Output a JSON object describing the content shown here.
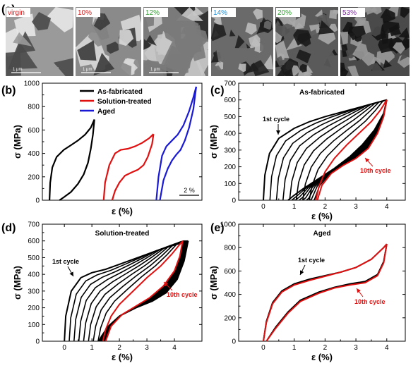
{
  "panel_a": {
    "label": "(a)",
    "micrographs": [
      {
        "strain": "virgin",
        "color": "#d81b1b",
        "scale": "1 μm"
      },
      {
        "strain": "10%",
        "color": "#d81b1b",
        "scale": "1 μm"
      },
      {
        "strain": "12%",
        "color": "#2e9d2e",
        "scale": "1 μm"
      },
      {
        "strain": "14%",
        "color": "#1a8fd8",
        "scale": ""
      },
      {
        "strain": "20%",
        "color": "#2e9d2e",
        "scale": ""
      },
      {
        "strain": "53%",
        "color": "#7a2e9a",
        "scale": ""
      }
    ]
  },
  "colors": {
    "black": "#000000",
    "red": "#e01010",
    "blue": "#1a1ad6"
  },
  "chart_data": [
    {
      "panel": "(b)",
      "type": "line",
      "xlabel": "ε (%)",
      "ylabel": "σ (MPa)",
      "ylim": [
        0,
        1000
      ],
      "yticks": [
        0,
        200,
        400,
        600,
        800,
        1000
      ],
      "xticks_shown": false,
      "scalebar": "2 %",
      "legend": {
        "position": "top-center",
        "entries": [
          "As-fabricated",
          "Solution-treated",
          "Aged"
        ]
      },
      "series": [
        {
          "name": "As-fabricated",
          "color": "#000000",
          "loading": [
            [
              0,
              0
            ],
            [
              0.05,
              150
            ],
            [
              0.2,
              280
            ],
            [
              0.5,
              370
            ],
            [
              1.0,
              430
            ],
            [
              1.5,
              470
            ],
            [
              2.0,
              510
            ],
            [
              2.5,
              560
            ],
            [
              2.9,
              620
            ],
            [
              3.15,
              690
            ]
          ],
          "unloading": [
            [
              3.15,
              690
            ],
            [
              3.05,
              560
            ],
            [
              2.9,
              440
            ],
            [
              2.7,
              320
            ],
            [
              2.4,
              220
            ],
            [
              2.0,
              140
            ],
            [
              1.5,
              70
            ],
            [
              1.0,
              25
            ],
            [
              0.7,
              0
            ]
          ]
        },
        {
          "name": "Solution-treated",
          "color": "#e01010",
          "loading": [
            [
              3.8,
              0
            ],
            [
              3.9,
              150
            ],
            [
              4.2,
              300
            ],
            [
              4.6,
              400
            ],
            [
              5.0,
              430
            ],
            [
              5.5,
              440
            ],
            [
              6.0,
              460
            ],
            [
              6.5,
              490
            ],
            [
              7.0,
              530
            ],
            [
              7.3,
              565
            ]
          ],
          "unloading": [
            [
              7.3,
              565
            ],
            [
              7.2,
              480
            ],
            [
              6.9,
              370
            ],
            [
              6.6,
              300
            ],
            [
              6.2,
              260
            ],
            [
              5.8,
              240
            ],
            [
              5.3,
              210
            ],
            [
              4.9,
              150
            ],
            [
              4.6,
              80
            ],
            [
              4.4,
              0
            ]
          ]
        },
        {
          "name": "Aged",
          "color": "#1a1ad6",
          "loading": [
            [
              7.5,
              0
            ],
            [
              7.65,
              200
            ],
            [
              7.9,
              380
            ],
            [
              8.2,
              460
            ],
            [
              8.6,
              510
            ],
            [
              9.0,
              560
            ],
            [
              9.4,
              640
            ],
            [
              9.8,
              760
            ],
            [
              10.1,
              880
            ],
            [
              10.3,
              970
            ]
          ],
          "unloading": [
            [
              10.3,
              970
            ],
            [
              10.1,
              780
            ],
            [
              9.8,
              620
            ],
            [
              9.5,
              510
            ],
            [
              9.2,
              430
            ],
            [
              8.9,
              390
            ],
            [
              8.6,
              340
            ],
            [
              8.3,
              270
            ],
            [
              8.0,
              170
            ],
            [
              7.75,
              0
            ]
          ]
        }
      ]
    },
    {
      "panel": "(c)",
      "type": "line",
      "title": "As-fabricated",
      "xlabel": "ε (%)",
      "ylabel": "σ (MPa)",
      "xlim": [
        -0.8,
        4.6
      ],
      "ylim": [
        0,
        700
      ],
      "xticks": [
        0,
        1,
        2,
        3,
        4
      ],
      "yticks": [
        0,
        100,
        200,
        300,
        400,
        500,
        600,
        700
      ],
      "annotations": [
        "1st cycle",
        "10th cycle"
      ],
      "series": [
        {
          "name": "1st cycle",
          "color": "#000000",
          "loading": [
            [
              0,
              0
            ],
            [
              0.05,
              150
            ],
            [
              0.2,
              280
            ],
            [
              0.5,
              370
            ],
            [
              1.0,
              430
            ],
            [
              1.5,
              470
            ],
            [
              2.0,
              500
            ],
            [
              2.5,
              525
            ],
            [
              3.0,
              550
            ],
            [
              3.5,
              575
            ],
            [
              4.0,
              600
            ]
          ],
          "unloading": [
            [
              4.0,
              600
            ],
            [
              3.9,
              520
            ],
            [
              3.6,
              420
            ],
            [
              3.2,
              330
            ],
            [
              2.8,
              260
            ],
            [
              2.3,
              190
            ],
            [
              1.8,
              130
            ],
            [
              1.3,
              70
            ],
            [
              1.0,
              30
            ],
            [
              0.8,
              0
            ]
          ]
        },
        {
          "name": "10th cycle",
          "color": "#e01010",
          "loading": [
            [
              1.7,
              0
            ],
            [
              1.8,
              80
            ],
            [
              2.0,
              170
            ],
            [
              2.3,
              250
            ],
            [
              2.7,
              330
            ],
            [
              3.1,
              400
            ],
            [
              3.5,
              470
            ],
            [
              3.8,
              540
            ],
            [
              4.0,
              600
            ]
          ],
          "unloading": [
            [
              4.0,
              600
            ],
            [
              3.9,
              500
            ],
            [
              3.7,
              400
            ],
            [
              3.4,
              310
            ],
            [
              3.0,
              250
            ],
            [
              2.6,
              210
            ],
            [
              2.2,
              160
            ],
            [
              1.9,
              90
            ],
            [
              1.75,
              0
            ]
          ]
        }
      ]
    },
    {
      "panel": "(d)",
      "type": "line",
      "title": "Solution-treated",
      "xlabel": "ε (%)",
      "ylabel": "σ (MPa)",
      "xlim": [
        -0.8,
        5.0
      ],
      "ylim": [
        0,
        700
      ],
      "xticks": [
        0,
        1,
        2,
        3,
        4
      ],
      "yticks": [
        0,
        100,
        200,
        300,
        400,
        500,
        600,
        700
      ],
      "annotations": [
        "1st cycle",
        "10th cycle"
      ],
      "series": [
        {
          "name": "1st cycle",
          "color": "#000000",
          "loading": [
            [
              0,
              0
            ],
            [
              0.05,
              150
            ],
            [
              0.25,
              300
            ],
            [
              0.6,
              380
            ],
            [
              1.0,
              410
            ],
            [
              1.5,
              430
            ],
            [
              2.0,
              460
            ],
            [
              2.5,
              490
            ],
            [
              3.0,
              520
            ],
            [
              3.5,
              550
            ],
            [
              4.0,
              575
            ],
            [
              4.5,
              600
            ]
          ],
          "unloading": [
            [
              4.5,
              600
            ],
            [
              4.35,
              480
            ],
            [
              4.1,
              370
            ],
            [
              3.7,
              290
            ],
            [
              3.2,
              240
            ],
            [
              2.6,
              200
            ],
            [
              2.0,
              150
            ],
            [
              1.6,
              90
            ],
            [
              1.35,
              30
            ],
            [
              1.25,
              0
            ]
          ]
        },
        {
          "name": "10th cycle",
          "color": "#e01010",
          "loading": [
            [
              1.4,
              0
            ],
            [
              1.5,
              70
            ],
            [
              1.7,
              150
            ],
            [
              2.0,
              220
            ],
            [
              2.5,
              300
            ],
            [
              3.0,
              380
            ],
            [
              3.5,
              450
            ],
            [
              3.9,
              520
            ],
            [
              4.3,
              600
            ]
          ],
          "unloading": [
            [
              4.3,
              600
            ],
            [
              4.2,
              510
            ],
            [
              4.0,
              420
            ],
            [
              3.6,
              330
            ],
            [
              3.1,
              260
            ],
            [
              2.6,
              210
            ],
            [
              2.1,
              160
            ],
            [
              1.7,
              90
            ],
            [
              1.5,
              0
            ]
          ]
        }
      ]
    },
    {
      "panel": "(e)",
      "type": "line",
      "title": "Aged",
      "xlabel": "ε (%)",
      "ylabel": "σ (MPa)",
      "xlim": [
        -0.8,
        4.6
      ],
      "ylim": [
        0,
        1000
      ],
      "xticks": [
        0,
        1,
        2,
        3,
        4
      ],
      "yticks": [
        0,
        200,
        400,
        600,
        800,
        1000
      ],
      "annotations": [
        "1st cycle",
        "10th cycle"
      ],
      "series": [
        {
          "name": "1st cycle",
          "color": "#000000",
          "loading": [
            [
              0,
              0
            ],
            [
              0.1,
              170
            ],
            [
              0.3,
              330
            ],
            [
              0.6,
              430
            ],
            [
              1.0,
              490
            ],
            [
              1.5,
              530
            ],
            [
              2.0,
              560
            ],
            [
              2.5,
              590
            ],
            [
              3.0,
              630
            ],
            [
              3.5,
              700
            ],
            [
              3.9,
              800
            ],
            [
              4.0,
              830
            ]
          ],
          "unloading": [
            [
              4.0,
              830
            ],
            [
              3.9,
              680
            ],
            [
              3.7,
              570
            ],
            [
              3.3,
              510
            ],
            [
              2.8,
              490
            ],
            [
              2.3,
              460
            ],
            [
              1.8,
              420
            ],
            [
              1.2,
              350
            ],
            [
              0.8,
              250
            ],
            [
              0.4,
              120
            ],
            [
              0.1,
              0
            ]
          ]
        },
        {
          "name": "10th cycle",
          "color": "#e01010",
          "loading": [
            [
              0,
              0
            ],
            [
              0.1,
              160
            ],
            [
              0.3,
              320
            ],
            [
              0.6,
              420
            ],
            [
              1.0,
              480
            ],
            [
              1.5,
              520
            ],
            [
              2.0,
              555
            ],
            [
              2.5,
              590
            ],
            [
              3.0,
              630
            ],
            [
              3.5,
              700
            ],
            [
              3.9,
              800
            ],
            [
              4.0,
              830
            ]
          ],
          "unloading": [
            [
              4.0,
              830
            ],
            [
              3.9,
              670
            ],
            [
              3.7,
              560
            ],
            [
              3.3,
              500
            ],
            [
              2.8,
              480
            ],
            [
              2.3,
              455
            ],
            [
              1.8,
              410
            ],
            [
              1.2,
              340
            ],
            [
              0.8,
              240
            ],
            [
              0.4,
              110
            ],
            [
              0.1,
              0
            ]
          ]
        }
      ]
    }
  ]
}
